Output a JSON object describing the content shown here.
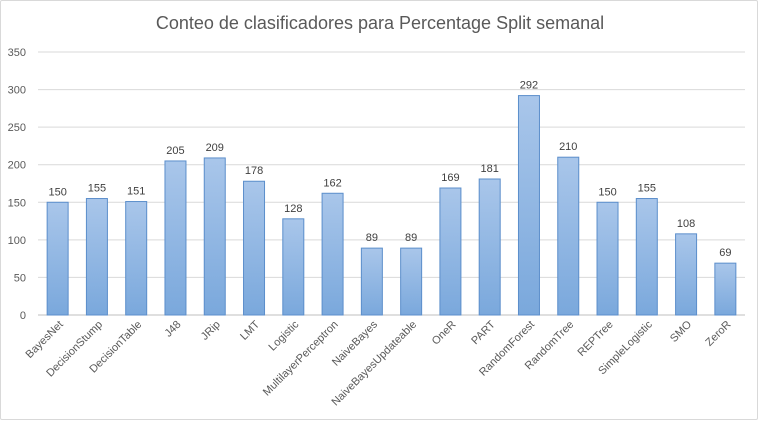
{
  "chart_data": {
    "type": "bar",
    "title": "Conteo de clasificadores para Percentage Split semanal",
    "xlabel": "",
    "ylabel": "",
    "ylim": [
      0,
      350
    ],
    "yticks": [
      0,
      50,
      100,
      150,
      200,
      250,
      300,
      350
    ],
    "grid": true,
    "legend": "none",
    "bar_color_top": "#a9c6ea",
    "bar_color_bottom": "#7aa8dc",
    "bar_border_color": "#5b8ecb",
    "grid_color": "#d9d9d9",
    "categories": [
      "BayesNet",
      "DecisionStump",
      "DecisionTable",
      "J48",
      "JRip",
      "LMT",
      "Logistic",
      "MultilayerPerceptron",
      "NaiveBayes",
      "NaiveBayesUpdateable",
      "OneR",
      "PART",
      "RandomForest",
      "RandomTree",
      "REPTree",
      "SimpleLogistic",
      "SMO",
      "ZeroR"
    ],
    "values": [
      150,
      155,
      151,
      205,
      209,
      178,
      128,
      162,
      89,
      89,
      169,
      181,
      292,
      210,
      150,
      155,
      108,
      69
    ]
  }
}
